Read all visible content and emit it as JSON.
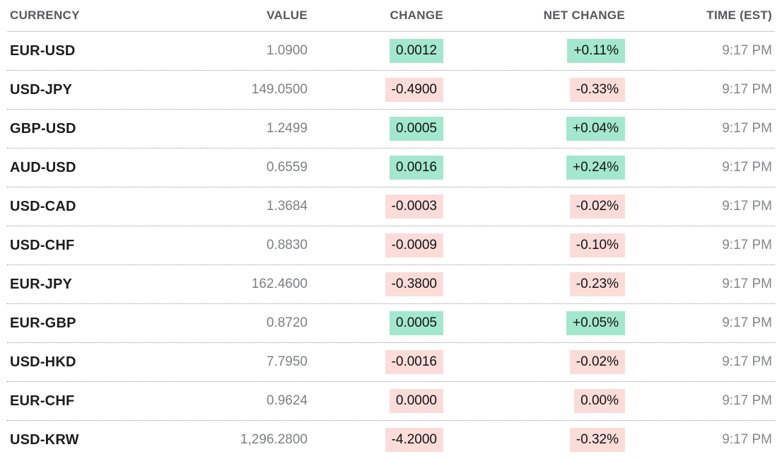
{
  "colors": {
    "positive_bg": "#a3e7cf",
    "negative_bg": "#fbdcd9",
    "currency_text": "#1c1c1e",
    "muted_text": "#7d7f82",
    "header_text": "#57585c"
  },
  "table": {
    "columns": [
      {
        "label": "CURRENCY"
      },
      {
        "label": "VALUE"
      },
      {
        "label": "CHANGE"
      },
      {
        "label": "NET CHANGE"
      },
      {
        "label": "TIME (EST)"
      }
    ],
    "rows": [
      {
        "currency": "EUR-USD",
        "value": "1.0900",
        "change": "0.0012",
        "net_change": "+0.11%",
        "time": "9:17 PM",
        "direction": "up"
      },
      {
        "currency": "USD-JPY",
        "value": "149.0500",
        "change": "-0.4900",
        "net_change": "-0.33%",
        "time": "9:17 PM",
        "direction": "down"
      },
      {
        "currency": "GBP-USD",
        "value": "1.2499",
        "change": "0.0005",
        "net_change": "+0.04%",
        "time": "9:17 PM",
        "direction": "up"
      },
      {
        "currency": "AUD-USD",
        "value": "0.6559",
        "change": "0.0016",
        "net_change": "+0.24%",
        "time": "9:17 PM",
        "direction": "up"
      },
      {
        "currency": "USD-CAD",
        "value": "1.3684",
        "change": "-0.0003",
        "net_change": "-0.02%",
        "time": "9:17 PM",
        "direction": "down"
      },
      {
        "currency": "USD-CHF",
        "value": "0.8830",
        "change": "-0.0009",
        "net_change": "-0.10%",
        "time": "9:17 PM",
        "direction": "down"
      },
      {
        "currency": "EUR-JPY",
        "value": "162.4600",
        "change": "-0.3800",
        "net_change": "-0.23%",
        "time": "9:17 PM",
        "direction": "down"
      },
      {
        "currency": "EUR-GBP",
        "value": "0.8720",
        "change": "0.0005",
        "net_change": "+0.05%",
        "time": "9:17 PM",
        "direction": "up"
      },
      {
        "currency": "USD-HKD",
        "value": "7.7950",
        "change": "-0.0016",
        "net_change": "-0.02%",
        "time": "9:17 PM",
        "direction": "down"
      },
      {
        "currency": "EUR-CHF",
        "value": "0.9624",
        "change": "0.0000",
        "net_change": "0.00%",
        "time": "9:17 PM",
        "direction": "down"
      },
      {
        "currency": "USD-KRW",
        "value": "1,296.2800",
        "change": "-4.2000",
        "net_change": "-0.32%",
        "time": "9:17 PM",
        "direction": "down"
      }
    ]
  },
  "chart_data": {
    "type": "table",
    "title": "",
    "columns": [
      "CURRENCY",
      "VALUE",
      "CHANGE",
      "NET CHANGE",
      "TIME (EST)"
    ],
    "rows": [
      [
        "EUR-USD",
        1.09,
        0.0012,
        "+0.11%",
        "9:17 PM"
      ],
      [
        "USD-JPY",
        149.05,
        -0.49,
        "-0.33%",
        "9:17 PM"
      ],
      [
        "GBP-USD",
        1.2499,
        0.0005,
        "+0.04%",
        "9:17 PM"
      ],
      [
        "AUD-USD",
        0.6559,
        0.0016,
        "+0.24%",
        "9:17 PM"
      ],
      [
        "USD-CAD",
        1.3684,
        -0.0003,
        "-0.02%",
        "9:17 PM"
      ],
      [
        "USD-CHF",
        0.883,
        -0.0009,
        "-0.10%",
        "9:17 PM"
      ],
      [
        "EUR-JPY",
        162.46,
        -0.38,
        "-0.23%",
        "9:17 PM"
      ],
      [
        "EUR-GBP",
        0.872,
        0.0005,
        "+0.05%",
        "9:17 PM"
      ],
      [
        "USD-HKD",
        7.795,
        -0.0016,
        "-0.02%",
        "9:17 PM"
      ],
      [
        "EUR-CHF",
        0.9624,
        0.0,
        "0.00%",
        "9:17 PM"
      ],
      [
        "USD-KRW",
        1296.28,
        -4.2,
        "-0.32%",
        "9:17 PM"
      ]
    ],
    "notes": "Positive changes highlighted mint green, negative/zero changes highlighted light pink"
  }
}
